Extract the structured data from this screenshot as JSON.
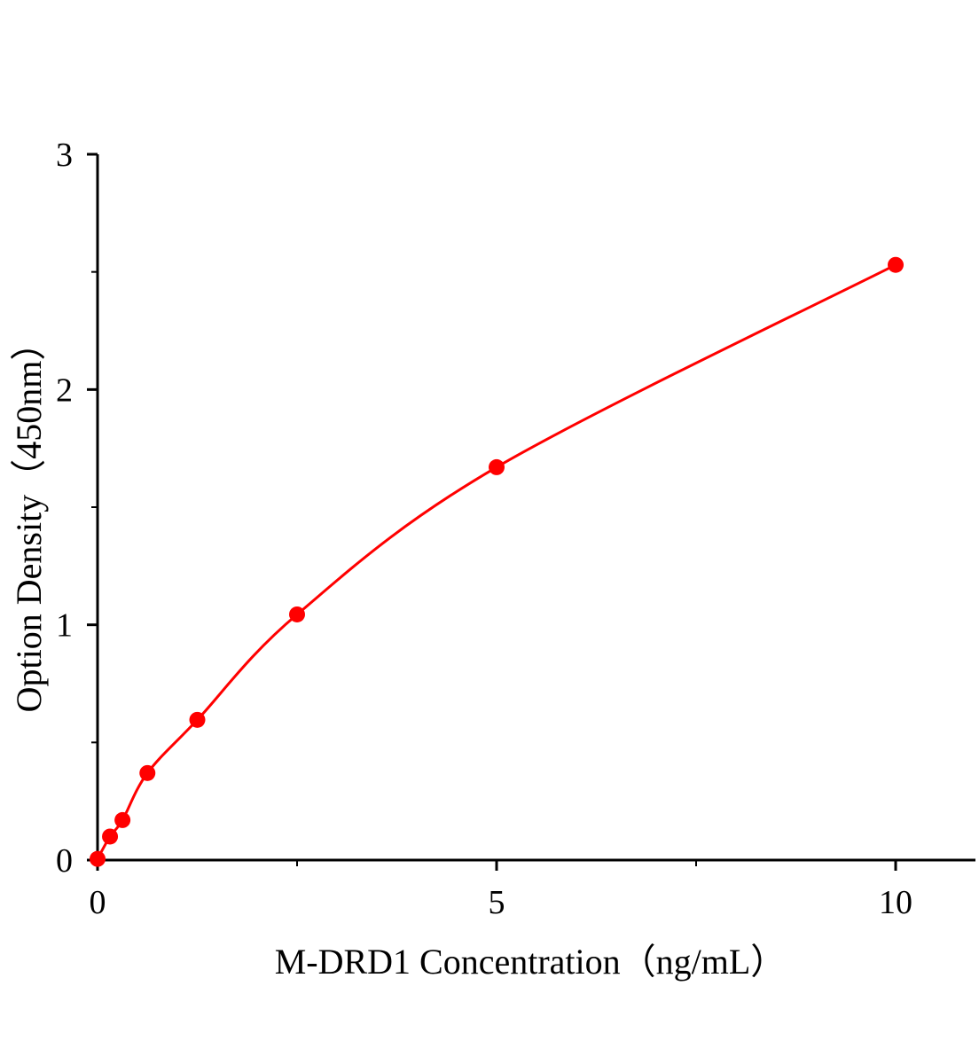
{
  "chart_data": {
    "type": "scatter",
    "title": "",
    "xlabel": "M-DRD1 Concentration（ng/mL）",
    "ylabel": "Option Density（450nm）",
    "xlim": [
      0,
      11
    ],
    "ylim": [
      0,
      3
    ],
    "x_ticks": [
      0,
      5,
      10
    ],
    "x_minor_ticks": [
      2.5,
      7.5
    ],
    "y_ticks": [
      0,
      1,
      2,
      3
    ],
    "y_minor_ticks": [
      0.5,
      1.5,
      2.5
    ],
    "grid": false,
    "color": "#ff0000",
    "fit_curve": true,
    "points": [
      {
        "x": 0,
        "y": 0.005
      },
      {
        "x": 0.156,
        "y": 0.1
      },
      {
        "x": 0.3125,
        "y": 0.17
      },
      {
        "x": 0.625,
        "y": 0.37
      },
      {
        "x": 1.25,
        "y": 0.596
      },
      {
        "x": 2.5,
        "y": 1.044
      },
      {
        "x": 5,
        "y": 1.67
      },
      {
        "x": 10,
        "y": 2.53
      }
    ]
  }
}
